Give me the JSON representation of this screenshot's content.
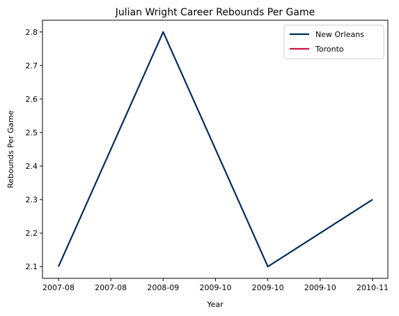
{
  "chart_data": {
    "type": "line",
    "title": "Julian Wright Career Rebounds Per Game",
    "xlabel": "Year",
    "ylabel": "Rebounds Per Game",
    "x_ticks": [
      "2007-08",
      "2007-08",
      "2008-09",
      "2009-10",
      "2009-10",
      "2009-10",
      "2010-11"
    ],
    "ylim": [
      2.065,
      2.835
    ],
    "y_ticks": [
      2.1,
      2.2,
      2.3,
      2.4,
      2.5,
      2.6,
      2.7,
      2.8
    ],
    "grid": false,
    "legend_position": "top-right",
    "series": [
      {
        "name": "New Orleans",
        "color": "#002B5C",
        "x": [
          "2007-08",
          "2008-09",
          "2009-10",
          "2010-11"
        ],
        "values": [
          2.1,
          2.8,
          2.1,
          2.3
        ]
      },
      {
        "name": "Toronto",
        "color": "#CE1141",
        "x": [],
        "values": []
      }
    ]
  }
}
